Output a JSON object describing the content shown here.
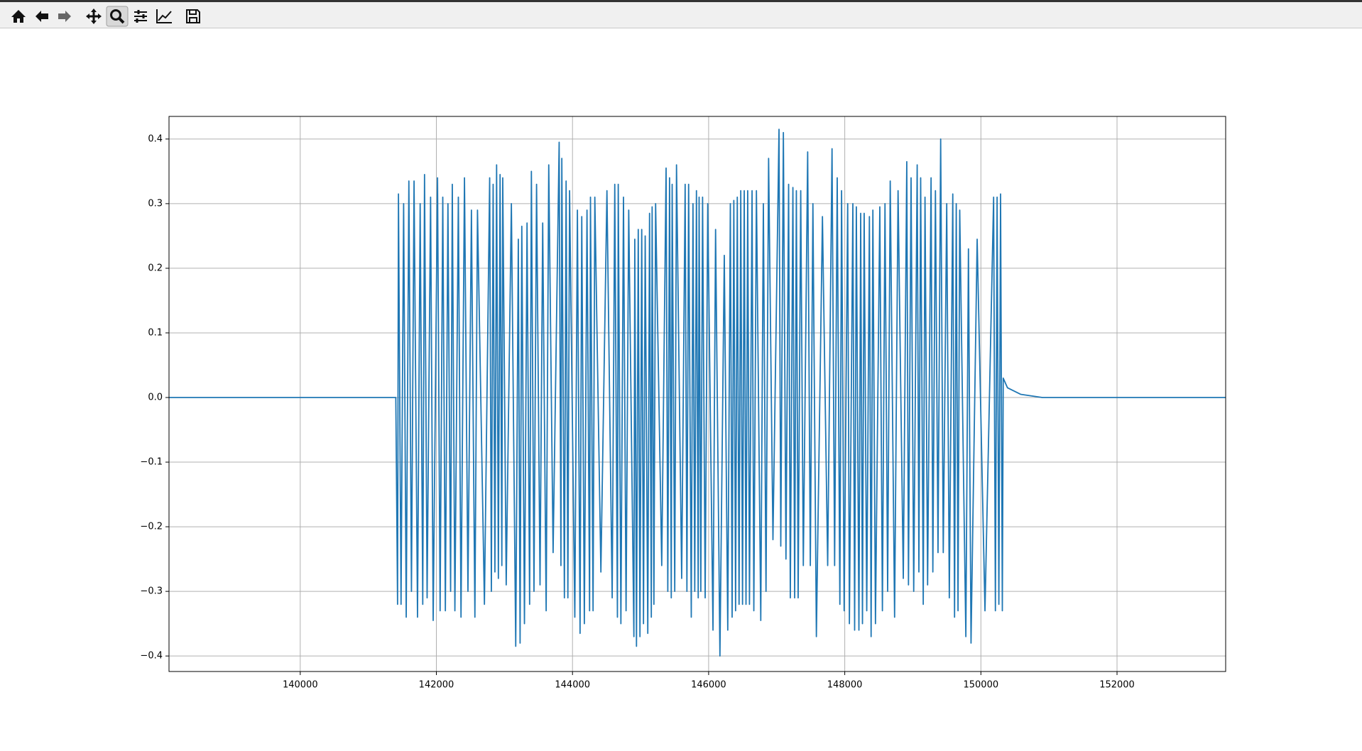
{
  "chart_data": {
    "type": "line",
    "x": [
      138072,
      141404,
      141430,
      141443,
      141481,
      141519,
      141557,
      141596,
      141634,
      141672,
      141723,
      141762,
      141800,
      141826,
      141864,
      141915,
      141953,
      142017,
      142055,
      142094,
      142132,
      142170,
      142209,
      142234,
      142272,
      142323,
      142362,
      142413,
      142464,
      142515,
      142566,
      142604,
      142706,
      142783,
      142808,
      142834,
      142860,
      142885,
      142911,
      142936,
      142962,
      142975,
      143026,
      143102,
      143166,
      143204,
      143230,
      143255,
      143294,
      143332,
      143370,
      143396,
      143434,
      143472,
      143523,
      143562,
      143613,
      143651,
      143715,
      143804,
      143830,
      143843,
      143881,
      143906,
      143932,
      143957,
      144034,
      144072,
      144111,
      144136,
      144174,
      144213,
      144251,
      144264,
      144302,
      144328,
      144417,
      144506,
      144583,
      144621,
      144660,
      144672,
      144711,
      144749,
      144787,
      144826,
      144902,
      144915,
      144940,
      144966,
      144991,
      145017,
      145043,
      145068,
      145106,
      145132,
      145158,
      145170,
      145196,
      145221,
      145311,
      145375,
      145400,
      145426,
      145451,
      145464,
      145502,
      145528,
      145604,
      145655,
      145681,
      145706,
      145745,
      145770,
      145796,
      145821,
      145847,
      145860,
      145885,
      145911,
      145949,
      145987,
      146064,
      146102,
      146166,
      146230,
      146281,
      146319,
      146345,
      146370,
      146396,
      146421,
      146447,
      146472,
      146498,
      146523,
      146549,
      146574,
      146600,
      146638,
      146664,
      146702,
      146766,
      146804,
      146843,
      146881,
      146945,
      147034,
      147060,
      147098,
      147136,
      147175,
      147200,
      147238,
      147264,
      147289,
      147315,
      147353,
      147391,
      147455,
      147494,
      147532,
      147583,
      147672,
      147749,
      147813,
      147851,
      147889,
      147928,
      147953,
      147991,
      148043,
      148068,
      148119,
      148145,
      148170,
      148208,
      148234,
      148260,
      148285,
      148323,
      148362,
      148387,
      148413,
      148451,
      148515,
      148553,
      148591,
      148630,
      148668,
      148732,
      148783,
      148860,
      148911,
      148936,
      148974,
      149013,
      149064,
      149089,
      149115,
      149153,
      149179,
      149217,
      149268,
      149294,
      149332,
      149370,
      149409,
      149447,
      149498,
      149536,
      149587,
      149613,
      149638,
      149664,
      149689,
      149779,
      149817,
      149855,
      149945,
      150060,
      150187,
      150213,
      150238,
      150264,
      150289,
      150315,
      150328,
      150391,
      150583,
      150902,
      153596
    ],
    "values": [
      0,
      0,
      -0.32,
      0.315,
      -0.32,
      0.3,
      -0.34,
      0.335,
      -0.3,
      0.335,
      -0.34,
      0.3,
      -0.32,
      0.345,
      -0.31,
      0.31,
      -0.345,
      0.34,
      -0.33,
      0.31,
      -0.33,
      0.3,
      -0.3,
      0.33,
      -0.33,
      0.31,
      -0.34,
      0.34,
      -0.3,
      0.29,
      -0.34,
      0.29,
      -0.32,
      0.34,
      -0.3,
      0.33,
      -0.27,
      0.36,
      -0.28,
      0.345,
      -0.26,
      0.34,
      -0.29,
      0.3,
      -0.385,
      0.245,
      -0.38,
      0.265,
      -0.35,
      0.27,
      -0.32,
      0.35,
      -0.3,
      0.33,
      -0.29,
      0.27,
      -0.33,
      0.36,
      -0.24,
      0.395,
      -0.26,
      0.37,
      -0.31,
      0.335,
      -0.31,
      0.32,
      -0.34,
      0.29,
      -0.365,
      0.28,
      -0.35,
      0.29,
      -0.33,
      0.31,
      -0.33,
      0.31,
      -0.27,
      0.32,
      -0.31,
      0.33,
      -0.34,
      0.33,
      -0.35,
      0.31,
      -0.33,
      0.29,
      -0.37,
      0.245,
      -0.385,
      0.26,
      -0.37,
      0.26,
      -0.35,
      0.25,
      -0.365,
      0.285,
      -0.34,
      0.295,
      -0.32,
      0.3,
      -0.26,
      0.355,
      -0.3,
      0.34,
      -0.31,
      0.33,
      -0.3,
      0.36,
      -0.28,
      0.33,
      -0.3,
      0.33,
      -0.34,
      0.3,
      -0.3,
      0.32,
      -0.31,
      0.31,
      -0.3,
      0.31,
      -0.31,
      0.3,
      -0.36,
      0.26,
      -0.4,
      0.22,
      -0.36,
      0.3,
      -0.34,
      0.305,
      -0.33,
      0.31,
      -0.32,
      0.32,
      -0.32,
      0.32,
      -0.32,
      0.32,
      -0.32,
      0.32,
      -0.33,
      0.32,
      -0.345,
      0.3,
      -0.3,
      0.37,
      -0.22,
      0.415,
      -0.23,
      0.41,
      -0.25,
      0.33,
      -0.31,
      0.325,
      -0.31,
      0.32,
      -0.31,
      0.32,
      -0.26,
      0.38,
      -0.26,
      0.3,
      -0.37,
      0.28,
      -0.26,
      0.385,
      -0.26,
      0.34,
      -0.32,
      0.32,
      -0.33,
      0.3,
      -0.35,
      0.3,
      -0.36,
      0.295,
      -0.36,
      0.285,
      -0.35,
      0.285,
      -0.33,
      0.28,
      -0.37,
      0.29,
      -0.35,
      0.295,
      -0.33,
      0.3,
      -0.3,
      0.335,
      -0.34,
      0.32,
      -0.28,
      0.365,
      -0.29,
      0.34,
      -0.3,
      0.36,
      -0.27,
      0.34,
      -0.32,
      0.31,
      -0.29,
      0.34,
      -0.27,
      0.32,
      -0.24,
      0.4,
      -0.24,
      0.3,
      -0.31,
      0.315,
      -0.34,
      0.3,
      -0.33,
      0.29,
      -0.37,
      0.23,
      -0.38,
      0.245,
      -0.33,
      0.31,
      -0.33,
      0.31,
      -0.32,
      0.315,
      -0.33,
      0.03,
      0.015,
      0.005,
      0,
      0
    ],
    "color": "#1f77b4",
    "xlim": [
      138072,
      153596
    ],
    "ylim": [
      -0.424,
      0.435
    ],
    "xticks": [
      140000,
      142000,
      144000,
      146000,
      148000,
      150000,
      152000
    ],
    "yticks": [
      {
        "value": -0.4,
        "label": "−0.4"
      },
      {
        "value": -0.3,
        "label": "−0.3"
      },
      {
        "value": -0.2,
        "label": "−0.2"
      },
      {
        "value": -0.1,
        "label": "−0.1"
      },
      {
        "value": 0,
        "label": "0.0"
      },
      0.1,
      0.2,
      0.3,
      0.4
    ],
    "grid": true
  }
}
